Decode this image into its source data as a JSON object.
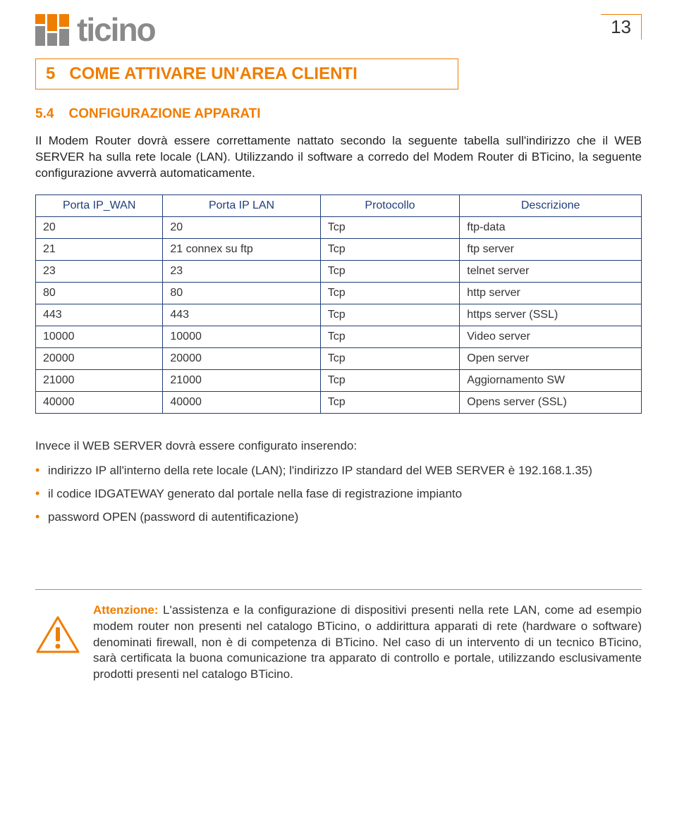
{
  "page": {
    "number": "13"
  },
  "section": {
    "number": "5",
    "title": "COME ATTIVARE UN'AREA CLIENTI"
  },
  "subsection": {
    "number": "5.4",
    "title": "CONFIGURAZIONE APPARATI"
  },
  "intro_para": "II Modem Router dovrà essere correttamente nattato secondo la seguente tabella sull'indirizzo che il WEB SERVER ha sulla rete locale (LAN). Utilizzando il software a corredo del Modem Router di BTicino, la seguente configurazione avverrà automaticamente.",
  "table": {
    "border_color": "#1f3e7a",
    "header_text_color": "#1f3e7a",
    "columns": [
      {
        "key": "wan",
        "label": "Porta IP_WAN"
      },
      {
        "key": "lan",
        "label": "Porta IP LAN"
      },
      {
        "key": "proto",
        "label": "Protocollo"
      },
      {
        "key": "desc",
        "label": "Descrizione"
      }
    ],
    "rows": [
      {
        "wan": "20",
        "lan": "20",
        "proto": "Tcp",
        "desc": "ftp-data"
      },
      {
        "wan": "21",
        "lan": "21 connex su ftp",
        "proto": "Tcp",
        "desc": "ftp server"
      },
      {
        "wan": "23",
        "lan": "23",
        "proto": "Tcp",
        "desc": "telnet server"
      },
      {
        "wan": "80",
        "lan": "80",
        "proto": "Tcp",
        "desc": "http server"
      },
      {
        "wan": "443",
        "lan": "443",
        "proto": "Tcp",
        "desc": "https server (SSL)"
      },
      {
        "wan": "10000",
        "lan": "10000",
        "proto": "Tcp",
        "desc": "Video server"
      },
      {
        "wan": "20000",
        "lan": "20000",
        "proto": "Tcp",
        "desc": "Open server"
      },
      {
        "wan": "21000",
        "lan": "21000",
        "proto": "Tcp",
        "desc": "Aggiornamento SW"
      },
      {
        "wan": "40000",
        "lan": "40000",
        "proto": "Tcp",
        "desc": "Opens server (SSL)"
      }
    ]
  },
  "config_intro": "Invece il WEB SERVER dovrà essere configurato inserendo:",
  "bullets": [
    "indirizzo IP all'interno della rete locale (LAN); l'indirizzo IP standard del WEB SERVER è 192.168.1.35)",
    "il codice IDGATEWAY generato dal portale nella fase di registrazione impianto",
    "password OPEN (password di autentificazione)"
  ],
  "warning": {
    "label": "Attenzione:",
    "text": " L'assistenza e la configurazione di dispositivi presenti nella rete LAN, come ad esempio modem router non presenti nel catalogo BTicino, o addirittura apparati di rete (hardware o software) denominati firewall, non è di competenza di BTicino. Nel caso di un intervento di un tecnico BTicino, sarà certificata la buona comunicazione tra apparato di controllo e portale, utilizzando esclusivamente prodotti presenti nel catalogo BTicino.",
    "icon_color": "#ef7d00"
  },
  "colors": {
    "accent": "#ef7d00",
    "logo_gray": "#8a8a8a",
    "text": "#333333",
    "table_border": "#1f3e7a"
  }
}
